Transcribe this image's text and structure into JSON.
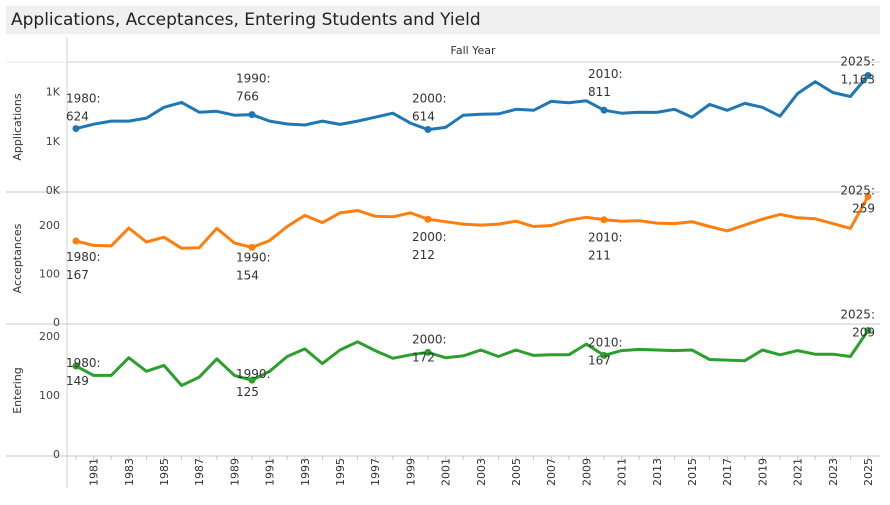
{
  "title": "Applications, Acceptances, Entering Students and Yield",
  "header": "Fall Year",
  "chart_data": {
    "type": "line",
    "years": [
      1980,
      1981,
      1982,
      1983,
      1984,
      1985,
      1986,
      1987,
      1988,
      1989,
      1990,
      1991,
      1992,
      1993,
      1994,
      1995,
      1996,
      1997,
      1998,
      1999,
      2000,
      2001,
      2002,
      2003,
      2004,
      2005,
      2006,
      2007,
      2008,
      2009,
      2010,
      2011,
      2012,
      2013,
      2014,
      2015,
      2016,
      2017,
      2018,
      2019,
      2020,
      2021,
      2022,
      2023,
      2024,
      2025
    ],
    "x_tick_labels": [
      "1981",
      "1983",
      "1985",
      "1987",
      "1989",
      "1991",
      "1993",
      "1995",
      "1997",
      "1999",
      "2001",
      "2003",
      "2005",
      "2007",
      "2009",
      "2011",
      "2013",
      "2015",
      "2017",
      "2019",
      "2021",
      "2023",
      "2025"
    ],
    "panels": [
      {
        "name": "Applications",
        "ylabel": "Applications",
        "ylim": [
          0,
          1280
        ],
        "y_ticks": [
          {
            "v": 0,
            "label": "0K"
          },
          {
            "v": 500,
            "label": "1K"
          },
          {
            "v": 1000,
            "label": "1K"
          }
        ],
        "color": "#1f77b4",
        "values": [
          624,
          668,
          700,
          700,
          730,
          840,
          890,
          790,
          800,
          760,
          766,
          700,
          670,
          660,
          700,
          666,
          700,
          740,
          780,
          680,
          614,
          636,
          760,
          770,
          773,
          820,
          810,
          900,
          887,
          906,
          811,
          780,
          790,
          788,
          820,
          740,
          870,
          810,
          880,
          840,
          750,
          980,
          1100,
          990,
          950,
          1163
        ],
        "annotations": [
          {
            "year": 1980,
            "label": "1980:",
            "value_label": "624"
          },
          {
            "year": 1990,
            "label": "1990:",
            "value_label": "766"
          },
          {
            "year": 2000,
            "label": "2000:",
            "value_label": "614"
          },
          {
            "year": 2010,
            "label": "2010:",
            "value_label": "811"
          },
          {
            "year": 2025,
            "label": "2025:",
            "value_label": "1,163"
          }
        ]
      },
      {
        "name": "Acceptances",
        "ylabel": "Acceptances",
        "ylim": [
          0,
          262
        ],
        "y_ticks": [
          {
            "v": 0,
            "label": "0"
          },
          {
            "v": 100,
            "label": "100"
          },
          {
            "v": 200,
            "label": "200"
          }
        ],
        "color": "#ff7f0e",
        "values": [
          167,
          158,
          157,
          194,
          165,
          175,
          152,
          153,
          193,
          163,
          154,
          168,
          197,
          220,
          205,
          225,
          230,
          218,
          217,
          225,
          212,
          207,
          202,
          200,
          202,
          208,
          197,
          199,
          210,
          216,
          211,
          208,
          209,
          204,
          203,
          207,
          197,
          188,
          200,
          212,
          222,
          215,
          213,
          203,
          193,
          259
        ],
        "annotations": [
          {
            "year": 1980,
            "label": "1980:",
            "value_label": "167"
          },
          {
            "year": 1990,
            "label": "1990:",
            "value_label": "154"
          },
          {
            "year": 2000,
            "label": "2000:",
            "value_label": "212"
          },
          {
            "year": 2010,
            "label": "2010:",
            "value_label": "211"
          },
          {
            "year": 2025,
            "label": "2025:",
            "value_label": "259"
          }
        ]
      },
      {
        "name": "Entering",
        "ylabel": "Entering",
        "ylim": [
          0,
          215
        ],
        "y_ticks": [
          {
            "v": 0,
            "label": "0"
          },
          {
            "v": 100,
            "label": "100"
          },
          {
            "v": 200,
            "label": "200"
          }
        ],
        "color": "#2ca02c",
        "values": [
          149,
          133,
          133,
          163,
          140,
          150,
          116,
          130,
          161,
          133,
          125,
          140,
          165,
          178,
          153,
          176,
          190,
          175,
          162,
          168,
          172,
          163,
          166,
          176,
          165,
          176,
          167,
          168,
          168,
          186,
          167,
          175,
          177,
          176,
          175,
          176,
          160,
          159,
          158,
          176,
          168,
          175,
          169,
          169,
          165,
          209
        ],
        "annotations": [
          {
            "year": 1980,
            "label": "1980:",
            "value_label": "149"
          },
          {
            "year": 1990,
            "label": "1990:",
            "value_label": "125"
          },
          {
            "year": 2000,
            "label": "2000:",
            "value_label": "172"
          },
          {
            "year": 2010,
            "label": "2010:",
            "value_label": "167"
          },
          {
            "year": 2025,
            "label": "2025:",
            "value_label": "209"
          }
        ]
      }
    ]
  }
}
